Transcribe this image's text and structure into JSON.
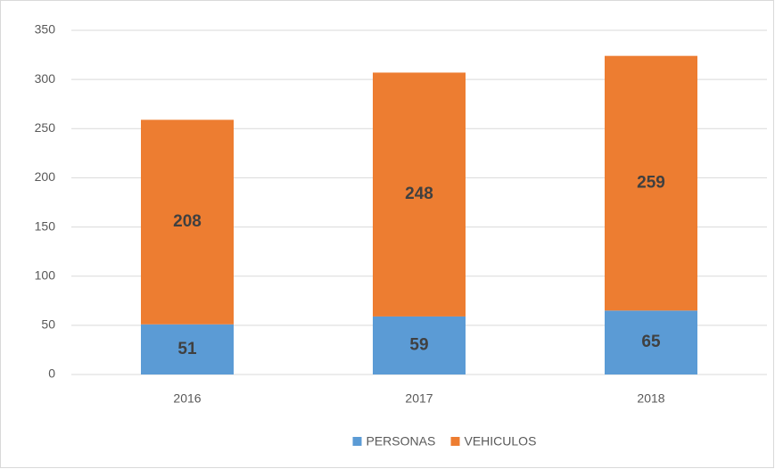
{
  "chart_data": {
    "type": "stacked_bar",
    "categories": [
      "2016",
      "2017",
      "2018"
    ],
    "series": [
      {
        "name": "PERSONAS",
        "color": "#5b9bd5",
        "values": [
          51,
          59,
          65
        ]
      },
      {
        "name": "VEHICULOS",
        "color": "#ed7d31",
        "values": [
          208,
          248,
          259
        ]
      }
    ],
    "ylim": [
      0,
      350
    ],
    "yticks": [
      0,
      50,
      100,
      150,
      200,
      250,
      300,
      350
    ],
    "grid": true,
    "legend": "bottom"
  }
}
